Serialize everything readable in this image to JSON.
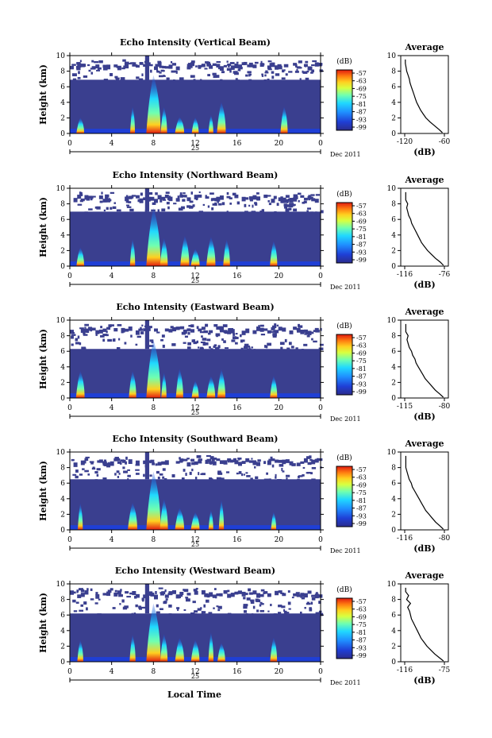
{
  "chart_data": [
    {
      "type": "heatmap",
      "title": "Echo Intensity (Vertical Beam)",
      "ylabel": "Height (km)",
      "xticks": [
        "0",
        "4",
        "8",
        "12",
        "16",
        "20",
        "0"
      ],
      "yticks": [
        "0",
        "2",
        "4",
        "6",
        "8",
        "10"
      ],
      "xlim": [
        0,
        24
      ],
      "ylim": [
        0,
        10
      ],
      "day_label": "25",
      "date_label": "Dec 2011",
      "colorbar": {
        "label": "(dB)",
        "ticks": [
          "-57",
          "-63",
          "-69",
          "-75",
          "-81",
          "-87",
          "-93",
          "-99"
        ]
      },
      "cloud_top_km": 6.9,
      "echo_columns_hours": [
        1,
        6,
        8,
        9,
        10.5,
        12,
        13.5,
        14.5,
        20.5
      ],
      "profile": {
        "title": "Average",
        "xlabel": "(dB)",
        "xticks": [
          "-120",
          "-60"
        ],
        "xlim": [
          -120,
          -60
        ],
        "yticks": [
          "0",
          "2",
          "4",
          "6",
          "8",
          "10"
        ],
        "points": [
          [
            -63,
            0.1
          ],
          [
            -68,
            0.5
          ],
          [
            -75,
            1.0
          ],
          [
            -82,
            1.5
          ],
          [
            -88,
            2.0
          ],
          [
            -92,
            2.5
          ],
          [
            -96,
            3.0
          ],
          [
            -99,
            3.5
          ],
          [
            -102,
            4.0
          ],
          [
            -104,
            4.5
          ],
          [
            -106,
            5.0
          ],
          [
            -108,
            5.5
          ],
          [
            -110,
            6.0
          ],
          [
            -112,
            6.5
          ],
          [
            -113,
            7.0
          ],
          [
            -115,
            7.5
          ],
          [
            -117,
            8.0
          ],
          [
            -118,
            8.5
          ],
          [
            -119,
            9.0
          ],
          [
            -119,
            9.5
          ]
        ]
      }
    },
    {
      "type": "heatmap",
      "title": "Echo Intensity (Northward Beam)",
      "ylabel": "Height (km)",
      "xticks": [
        "0",
        "4",
        "8",
        "12",
        "16",
        "20",
        "0"
      ],
      "yticks": [
        "0",
        "2",
        "4",
        "6",
        "8",
        "10"
      ],
      "xlim": [
        0,
        24
      ],
      "ylim": [
        0,
        10
      ],
      "day_label": "25",
      "date_label": "Dec 2011",
      "colorbar": {
        "label": "(dB)",
        "ticks": [
          "-57",
          "-63",
          "-69",
          "-75",
          "-81",
          "-87",
          "-93",
          "-99"
        ]
      },
      "cloud_top_km": 7.0,
      "echo_columns_hours": [
        1,
        6,
        8,
        9,
        11,
        12,
        13.5,
        15,
        19.5
      ],
      "profile": {
        "title": "Average",
        "xlabel": "(dB)",
        "xticks": [
          "-116",
          "-76"
        ],
        "xlim": [
          -116,
          -76
        ],
        "yticks": [
          "0",
          "2",
          "4",
          "6",
          "8",
          "10"
        ],
        "points": [
          [
            -77,
            0.1
          ],
          [
            -80,
            0.5
          ],
          [
            -85,
            1.0
          ],
          [
            -89,
            1.5
          ],
          [
            -93,
            2.0
          ],
          [
            -96,
            2.5
          ],
          [
            -99,
            3.0
          ],
          [
            -101,
            3.5
          ],
          [
            -103,
            4.0
          ],
          [
            -105,
            4.5
          ],
          [
            -107,
            5.0
          ],
          [
            -109,
            5.5
          ],
          [
            -110,
            6.0
          ],
          [
            -112,
            6.5
          ],
          [
            -113,
            7.0
          ],
          [
            -114,
            7.5
          ],
          [
            -113,
            8.0
          ],
          [
            -115,
            8.5
          ],
          [
            -115,
            9.0
          ],
          [
            -115,
            9.5
          ]
        ]
      }
    },
    {
      "type": "heatmap",
      "title": "Echo Intensity (Eastward Beam)",
      "ylabel": "Height (km)",
      "xticks": [
        "0",
        "4",
        "8",
        "12",
        "16",
        "20",
        "0"
      ],
      "yticks": [
        "0",
        "2",
        "4",
        "6",
        "8",
        "10"
      ],
      "xlim": [
        0,
        24
      ],
      "ylim": [
        0,
        10
      ],
      "day_label": "25",
      "date_label": "Dec 2011",
      "colorbar": {
        "label": "(dB)",
        "ticks": [
          "-57",
          "-63",
          "-69",
          "-75",
          "-81",
          "-87",
          "-93",
          "-99"
        ]
      },
      "cloud_top_km": 6.3,
      "echo_columns_hours": [
        1,
        6,
        8,
        9,
        10.5,
        12,
        13.5,
        14.5,
        19.5
      ],
      "profile": {
        "title": "Average",
        "xlabel": "(dB)",
        "xticks": [
          "-115",
          "-80"
        ],
        "xlim": [
          -115,
          -80
        ],
        "yticks": [
          "0",
          "2",
          "4",
          "6",
          "8",
          "10"
        ],
        "points": [
          [
            -81,
            0.1
          ],
          [
            -84,
            0.5
          ],
          [
            -88,
            1.0
          ],
          [
            -91,
            1.5
          ],
          [
            -94,
            2.0
          ],
          [
            -97,
            2.5
          ],
          [
            -99,
            3.0
          ],
          [
            -101,
            3.5
          ],
          [
            -103,
            4.0
          ],
          [
            -105,
            4.5
          ],
          [
            -106,
            5.0
          ],
          [
            -108,
            5.5
          ],
          [
            -109,
            6.0
          ],
          [
            -111,
            6.5
          ],
          [
            -112,
            7.0
          ],
          [
            -113,
            7.5
          ],
          [
            -112,
            8.0
          ],
          [
            -114,
            8.5
          ],
          [
            -114,
            9.0
          ],
          [
            -114,
            9.5
          ]
        ]
      }
    },
    {
      "type": "heatmap",
      "title": "Echo Intensity (Southward Beam)",
      "ylabel": "Height (km)",
      "xticks": [
        "0",
        "4",
        "8",
        "12",
        "16",
        "20",
        "0"
      ],
      "yticks": [
        "0",
        "2",
        "4",
        "6",
        "8",
        "10"
      ],
      "xlim": [
        0,
        24
      ],
      "ylim": [
        0,
        10
      ],
      "day_label": "25",
      "date_label": "Dec 2011",
      "colorbar": {
        "label": "(dB)",
        "ticks": [
          "-57",
          "-63",
          "-69",
          "-75",
          "-81",
          "-87",
          "-93",
          "-99"
        ]
      },
      "cloud_top_km": 6.5,
      "echo_columns_hours": [
        1,
        6,
        8,
        9,
        10.5,
        12,
        13.5,
        14.5,
        19.5
      ],
      "profile": {
        "title": "Average",
        "xlabel": "(dB)",
        "xticks": [
          "-116",
          "-80"
        ],
        "xlim": [
          -116,
          -80
        ],
        "yticks": [
          "0",
          "2",
          "4",
          "6",
          "8",
          "10"
        ],
        "points": [
          [
            -81,
            0.1
          ],
          [
            -84,
            0.5
          ],
          [
            -88,
            1.0
          ],
          [
            -91,
            1.5
          ],
          [
            -94,
            2.0
          ],
          [
            -97,
            2.5
          ],
          [
            -99,
            3.0
          ],
          [
            -101,
            3.5
          ],
          [
            -103,
            4.0
          ],
          [
            -105,
            4.5
          ],
          [
            -107,
            5.0
          ],
          [
            -109,
            5.5
          ],
          [
            -110,
            6.0
          ],
          [
            -112,
            6.5
          ],
          [
            -113,
            7.0
          ],
          [
            -114,
            7.5
          ],
          [
            -115,
            8.0
          ],
          [
            -115,
            8.5
          ],
          [
            -115,
            9.0
          ],
          [
            -115,
            9.5
          ]
        ]
      }
    },
    {
      "type": "heatmap",
      "title": "Echo Intensity (Westward Beam)",
      "ylabel": "Height (km)",
      "xlabel": "Local Time",
      "xticks": [
        "0",
        "4",
        "8",
        "12",
        "16",
        "20",
        "0"
      ],
      "yticks": [
        "0",
        "2",
        "4",
        "6",
        "8",
        "10"
      ],
      "xlim": [
        0,
        24
      ],
      "ylim": [
        0,
        10
      ],
      "day_label": "25",
      "date_label": "Dec 2011",
      "colorbar": {
        "label": "(dB)",
        "ticks": [
          "-57",
          "-63",
          "-69",
          "-75",
          "-81",
          "-87",
          "-93",
          "-99"
        ]
      },
      "cloud_top_km": 6.2,
      "echo_columns_hours": [
        1,
        6,
        8,
        9,
        10.5,
        12,
        13.5,
        14.5,
        19.5
      ],
      "profile": {
        "title": "Average",
        "xlabel": "(dB)",
        "xticks": [
          "-116",
          "-75"
        ],
        "xlim": [
          -116,
          -75
        ],
        "yticks": [
          "0",
          "2",
          "4",
          "6",
          "8",
          "10"
        ],
        "points": [
          [
            -76,
            0.1
          ],
          [
            -80,
            0.5
          ],
          [
            -85,
            1.0
          ],
          [
            -89,
            1.5
          ],
          [
            -93,
            2.0
          ],
          [
            -96,
            2.5
          ],
          [
            -99,
            3.0
          ],
          [
            -101,
            3.5
          ],
          [
            -103,
            4.0
          ],
          [
            -105,
            4.5
          ],
          [
            -107,
            5.0
          ],
          [
            -109,
            5.5
          ],
          [
            -110,
            6.0
          ],
          [
            -111,
            6.5
          ],
          [
            -113,
            7.0
          ],
          [
            -110,
            7.5
          ],
          [
            -114,
            8.0
          ],
          [
            -112,
            8.5
          ],
          [
            -115,
            9.0
          ],
          [
            -115,
            9.5
          ]
        ]
      }
    }
  ],
  "colors": {
    "background": "#3a3f8f",
    "colormap": [
      "#2b2c8c",
      "#1f3fd6",
      "#1f8fff",
      "#20d8ff",
      "#70ffb0",
      "#d8ff40",
      "#ffd020",
      "#ff7a10",
      "#e01a10"
    ]
  }
}
